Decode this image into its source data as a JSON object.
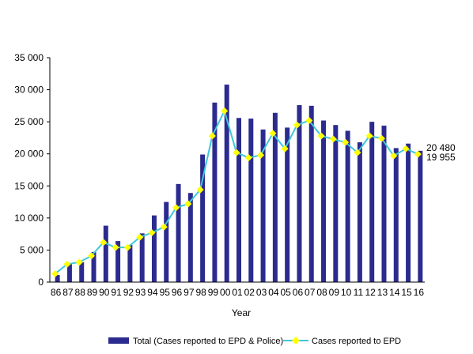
{
  "colors": {
    "bar": "#2b2b8f",
    "line": "#3fc8d8",
    "marker": "#ffff00",
    "axis": "#000000"
  },
  "chart_data": {
    "type": "bar",
    "title": "",
    "xlabel": "Year",
    "ylabel": "",
    "ylim": [
      0,
      35000
    ],
    "yticks": [
      0,
      5000,
      10000,
      15000,
      20000,
      25000,
      30000,
      35000
    ],
    "ytick_labels": [
      "0",
      "5 000",
      "10 000",
      "15 000",
      "20 000",
      "25 000",
      "30 000",
      "35 000"
    ],
    "categories": [
      "86",
      "87",
      "88",
      "89",
      "90",
      "91",
      "92",
      "93",
      "94",
      "95",
      "96",
      "97",
      "98",
      "99",
      "00",
      "01",
      "02",
      "03",
      "04",
      "05",
      "06",
      "07",
      "08",
      "09",
      "10",
      "11",
      "12",
      "13",
      "14",
      "15",
      "16"
    ],
    "grid": false,
    "legend_position": "bottom",
    "series": [
      {
        "name": "Total (Cases reported to EPD & Police)",
        "kind": "bar",
        "values": [
          1100,
          2800,
          3100,
          4700,
          8800,
          6400,
          5800,
          7600,
          10400,
          12500,
          15300,
          13900,
          19900,
          28000,
          30800,
          25600,
          25500,
          23800,
          26400,
          24100,
          27600,
          27500,
          25200,
          24500,
          23600,
          21800,
          25000,
          24400,
          20900,
          21600,
          20480
        ]
      },
      {
        "name": "Cases reported to EPD",
        "kind": "line",
        "values": [
          1300,
          2800,
          3100,
          4100,
          6200,
          5400,
          5400,
          7000,
          7700,
          8600,
          11600,
          12200,
          14400,
          22800,
          26700,
          20200,
          19400,
          19800,
          23200,
          20800,
          24500,
          25200,
          22800,
          22300,
          21800,
          20200,
          22800,
          22400,
          19700,
          20800,
          19955
        ]
      }
    ],
    "annotations": [
      "20 480",
      "19 955"
    ]
  }
}
